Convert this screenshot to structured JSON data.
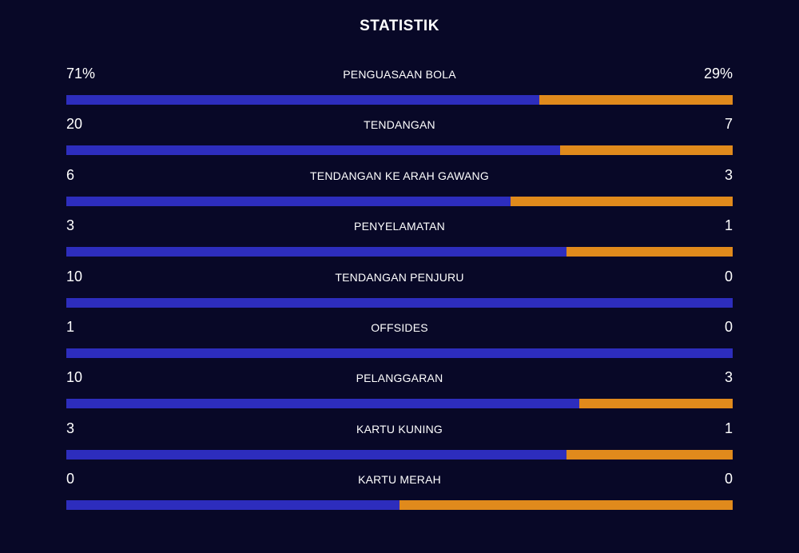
{
  "title": "STATISTIK",
  "colors": {
    "background": "#080827",
    "home": "#2d2dbd",
    "away": "#e08a1c"
  },
  "stats": [
    {
      "label": "PENGUASAAN BOLA",
      "home": "71%",
      "away": "29%",
      "home_share": 0.71
    },
    {
      "label": "TENDANGAN",
      "home": "20",
      "away": "7",
      "home_share": 0.7407
    },
    {
      "label": "TENDANGAN KE ARAH GAWANG",
      "home": "6",
      "away": "3",
      "home_share": 0.6667
    },
    {
      "label": "PENYELAMATAN",
      "home": "3",
      "away": "1",
      "home_share": 0.75
    },
    {
      "label": "TENDANGAN PENJURU",
      "home": "10",
      "away": "0",
      "home_share": 1.0
    },
    {
      "label": "OFFSIDES",
      "home": "1",
      "away": "0",
      "home_share": 1.0
    },
    {
      "label": "PELANGGARAN",
      "home": "10",
      "away": "3",
      "home_share": 0.7692
    },
    {
      "label": "KARTU KUNING",
      "home": "3",
      "away": "1",
      "home_share": 0.75
    },
    {
      "label": "KARTU MERAH",
      "home": "0",
      "away": "0",
      "home_share": 0.5
    }
  ]
}
